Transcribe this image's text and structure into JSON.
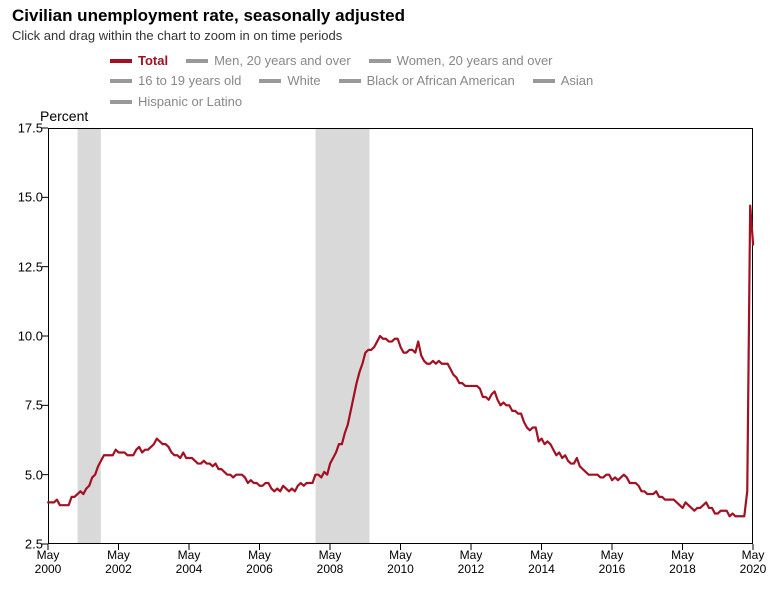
{
  "title": "Civilian unemployment rate, seasonally adjusted",
  "subtitle": "Click and drag within the chart to zoom in on time periods",
  "ylabel": "Percent",
  "legend": {
    "items": [
      {
        "label": "Total",
        "color": "#a31022",
        "active": true
      },
      {
        "label": "Men, 20 years and over",
        "color": "#999999",
        "active": false
      },
      {
        "label": "Women, 20 years and over",
        "color": "#999999",
        "active": false
      },
      {
        "label": "16 to 19 years old",
        "color": "#999999",
        "active": false
      },
      {
        "label": "White",
        "color": "#999999",
        "active": false
      },
      {
        "label": "Black or African American",
        "color": "#999999",
        "active": false
      },
      {
        "label": "Asian",
        "color": "#999999",
        "active": false
      },
      {
        "label": "Hispanic or Latino",
        "color": "#999999",
        "active": false
      }
    ]
  },
  "chart": {
    "type": "line",
    "background_color": "#ffffff",
    "plot_border_color": "#000000",
    "plot_border_width": 1,
    "line_color": "#a31022",
    "line_width": 2.2,
    "shading_color": "#d9d9d9",
    "x": {
      "min": 2000.33,
      "max": 2020.33,
      "ticks": [
        2000.33,
        2002.33,
        2004.33,
        2006.33,
        2008.33,
        2010.33,
        2012.33,
        2014.33,
        2016.33,
        2018.33,
        2020.33
      ],
      "tick_labels": [
        "May\n2000",
        "May\n2002",
        "May\n2004",
        "May\n2006",
        "May\n2008",
        "May\n2010",
        "May\n2012",
        "May\n2014",
        "May\n2016",
        "May\n2018",
        "May\n2020"
      ],
      "tick_length": 6,
      "tick_color": "#000000",
      "label_fontsize": 12
    },
    "y": {
      "min": 2.5,
      "max": 17.5,
      "ticks": [
        2.5,
        5.0,
        7.5,
        10.0,
        12.5,
        15.0,
        17.5
      ],
      "tick_labels": [
        "2.5",
        "5.0",
        "7.5",
        "10.0",
        "12.5",
        "15.0",
        "17.5"
      ],
      "tick_length": 6,
      "tick_color": "#000000",
      "label_fontsize": 13
    },
    "recession_bands": [
      {
        "start": 2001.17,
        "end": 2001.83
      },
      {
        "start": 2007.92,
        "end": 2009.45
      }
    ],
    "series": [
      {
        "name": "Total",
        "color": "#a31022",
        "x": [
          2000.333,
          2000.417,
          2000.5,
          2000.583,
          2000.667,
          2000.75,
          2000.833,
          2000.917,
          2001.0,
          2001.083,
          2001.167,
          2001.25,
          2001.333,
          2001.417,
          2001.5,
          2001.583,
          2001.667,
          2001.75,
          2001.833,
          2001.917,
          2002.0,
          2002.083,
          2002.167,
          2002.25,
          2002.333,
          2002.417,
          2002.5,
          2002.583,
          2002.667,
          2002.75,
          2002.833,
          2002.917,
          2003.0,
          2003.083,
          2003.167,
          2003.25,
          2003.333,
          2003.417,
          2003.5,
          2003.583,
          2003.667,
          2003.75,
          2003.833,
          2003.917,
          2004.0,
          2004.083,
          2004.167,
          2004.25,
          2004.333,
          2004.417,
          2004.5,
          2004.583,
          2004.667,
          2004.75,
          2004.833,
          2004.917,
          2005.0,
          2005.083,
          2005.167,
          2005.25,
          2005.333,
          2005.417,
          2005.5,
          2005.583,
          2005.667,
          2005.75,
          2005.833,
          2005.917,
          2006.0,
          2006.083,
          2006.167,
          2006.25,
          2006.333,
          2006.417,
          2006.5,
          2006.583,
          2006.667,
          2006.75,
          2006.833,
          2006.917,
          2007.0,
          2007.083,
          2007.167,
          2007.25,
          2007.333,
          2007.417,
          2007.5,
          2007.583,
          2007.667,
          2007.75,
          2007.833,
          2007.917,
          2008.0,
          2008.083,
          2008.167,
          2008.25,
          2008.333,
          2008.417,
          2008.5,
          2008.583,
          2008.667,
          2008.75,
          2008.833,
          2008.917,
          2009.0,
          2009.083,
          2009.167,
          2009.25,
          2009.333,
          2009.417,
          2009.5,
          2009.583,
          2009.667,
          2009.75,
          2009.833,
          2009.917,
          2010.0,
          2010.083,
          2010.167,
          2010.25,
          2010.333,
          2010.417,
          2010.5,
          2010.583,
          2010.667,
          2010.75,
          2010.833,
          2010.917,
          2011.0,
          2011.083,
          2011.167,
          2011.25,
          2011.333,
          2011.417,
          2011.5,
          2011.583,
          2011.667,
          2011.75,
          2011.833,
          2011.917,
          2012.0,
          2012.083,
          2012.167,
          2012.25,
          2012.333,
          2012.417,
          2012.5,
          2012.583,
          2012.667,
          2012.75,
          2012.833,
          2012.917,
          2013.0,
          2013.083,
          2013.167,
          2013.25,
          2013.333,
          2013.417,
          2013.5,
          2013.583,
          2013.667,
          2013.75,
          2013.833,
          2013.917,
          2014.0,
          2014.083,
          2014.167,
          2014.25,
          2014.333,
          2014.417,
          2014.5,
          2014.583,
          2014.667,
          2014.75,
          2014.833,
          2014.917,
          2015.0,
          2015.083,
          2015.167,
          2015.25,
          2015.333,
          2015.417,
          2015.5,
          2015.583,
          2015.667,
          2015.75,
          2015.833,
          2015.917,
          2016.0,
          2016.083,
          2016.167,
          2016.25,
          2016.333,
          2016.417,
          2016.5,
          2016.583,
          2016.667,
          2016.75,
          2016.833,
          2016.917,
          2017.0,
          2017.083,
          2017.167,
          2017.25,
          2017.333,
          2017.417,
          2017.5,
          2017.583,
          2017.667,
          2017.75,
          2017.833,
          2017.917,
          2018.0,
          2018.083,
          2018.167,
          2018.25,
          2018.333,
          2018.417,
          2018.5,
          2018.583,
          2018.667,
          2018.75,
          2018.833,
          2018.917,
          2019.0,
          2019.083,
          2019.167,
          2019.25,
          2019.333,
          2019.417,
          2019.5,
          2019.583,
          2019.667,
          2019.75,
          2019.833,
          2019.917,
          2020.0,
          2020.083,
          2020.167,
          2020.25,
          2020.333
        ],
        "y": [
          4.0,
          4.0,
          4.0,
          4.1,
          3.9,
          3.9,
          3.9,
          3.9,
          4.2,
          4.2,
          4.3,
          4.4,
          4.3,
          4.5,
          4.6,
          4.9,
          5.0,
          5.3,
          5.5,
          5.7,
          5.7,
          5.7,
          5.7,
          5.9,
          5.8,
          5.8,
          5.8,
          5.7,
          5.7,
          5.7,
          5.9,
          6.0,
          5.8,
          5.9,
          5.9,
          6.0,
          6.1,
          6.3,
          6.2,
          6.1,
          6.1,
          6.0,
          5.8,
          5.7,
          5.7,
          5.6,
          5.8,
          5.6,
          5.6,
          5.6,
          5.5,
          5.4,
          5.4,
          5.5,
          5.4,
          5.4,
          5.3,
          5.4,
          5.2,
          5.2,
          5.1,
          5.0,
          5.0,
          4.9,
          5.0,
          5.0,
          5.0,
          4.9,
          4.7,
          4.8,
          4.7,
          4.7,
          4.6,
          4.6,
          4.7,
          4.7,
          4.5,
          4.4,
          4.5,
          4.4,
          4.6,
          4.5,
          4.4,
          4.5,
          4.4,
          4.6,
          4.7,
          4.6,
          4.7,
          4.7,
          4.7,
          5.0,
          5.0,
          4.9,
          5.1,
          5.0,
          5.4,
          5.6,
          5.8,
          6.1,
          6.1,
          6.5,
          6.8,
          7.3,
          7.8,
          8.3,
          8.7,
          9.0,
          9.4,
          9.5,
          9.5,
          9.6,
          9.8,
          10.0,
          9.9,
          9.9,
          9.8,
          9.8,
          9.9,
          9.9,
          9.6,
          9.4,
          9.4,
          9.5,
          9.5,
          9.4,
          9.8,
          9.3,
          9.1,
          9.0,
          9.0,
          9.1,
          9.0,
          9.1,
          9.0,
          9.0,
          9.0,
          8.8,
          8.6,
          8.5,
          8.3,
          8.3,
          8.2,
          8.2,
          8.2,
          8.2,
          8.2,
          8.1,
          7.8,
          7.8,
          7.7,
          7.9,
          8.0,
          7.7,
          7.5,
          7.6,
          7.5,
          7.5,
          7.3,
          7.3,
          7.2,
          7.2,
          6.9,
          6.7,
          6.6,
          6.7,
          6.7,
          6.2,
          6.3,
          6.1,
          6.2,
          6.1,
          5.9,
          5.7,
          5.8,
          5.6,
          5.7,
          5.5,
          5.4,
          5.4,
          5.6,
          5.3,
          5.2,
          5.1,
          5.0,
          5.0,
          5.0,
          5.0,
          4.9,
          4.9,
          5.0,
          5.0,
          4.8,
          4.9,
          4.8,
          4.9,
          5.0,
          4.9,
          4.7,
          4.7,
          4.7,
          4.6,
          4.4,
          4.4,
          4.3,
          4.3,
          4.3,
          4.4,
          4.2,
          4.2,
          4.1,
          4.1,
          4.1,
          4.1,
          4.0,
          3.9,
          3.8,
          4.0,
          3.9,
          3.8,
          3.7,
          3.8,
          3.8,
          3.9,
          4.0,
          3.8,
          3.8,
          3.6,
          3.6,
          3.7,
          3.7,
          3.7,
          3.5,
          3.6,
          3.5,
          3.5,
          3.5,
          3.5,
          4.4,
          14.7,
          13.3
        ]
      }
    ]
  }
}
